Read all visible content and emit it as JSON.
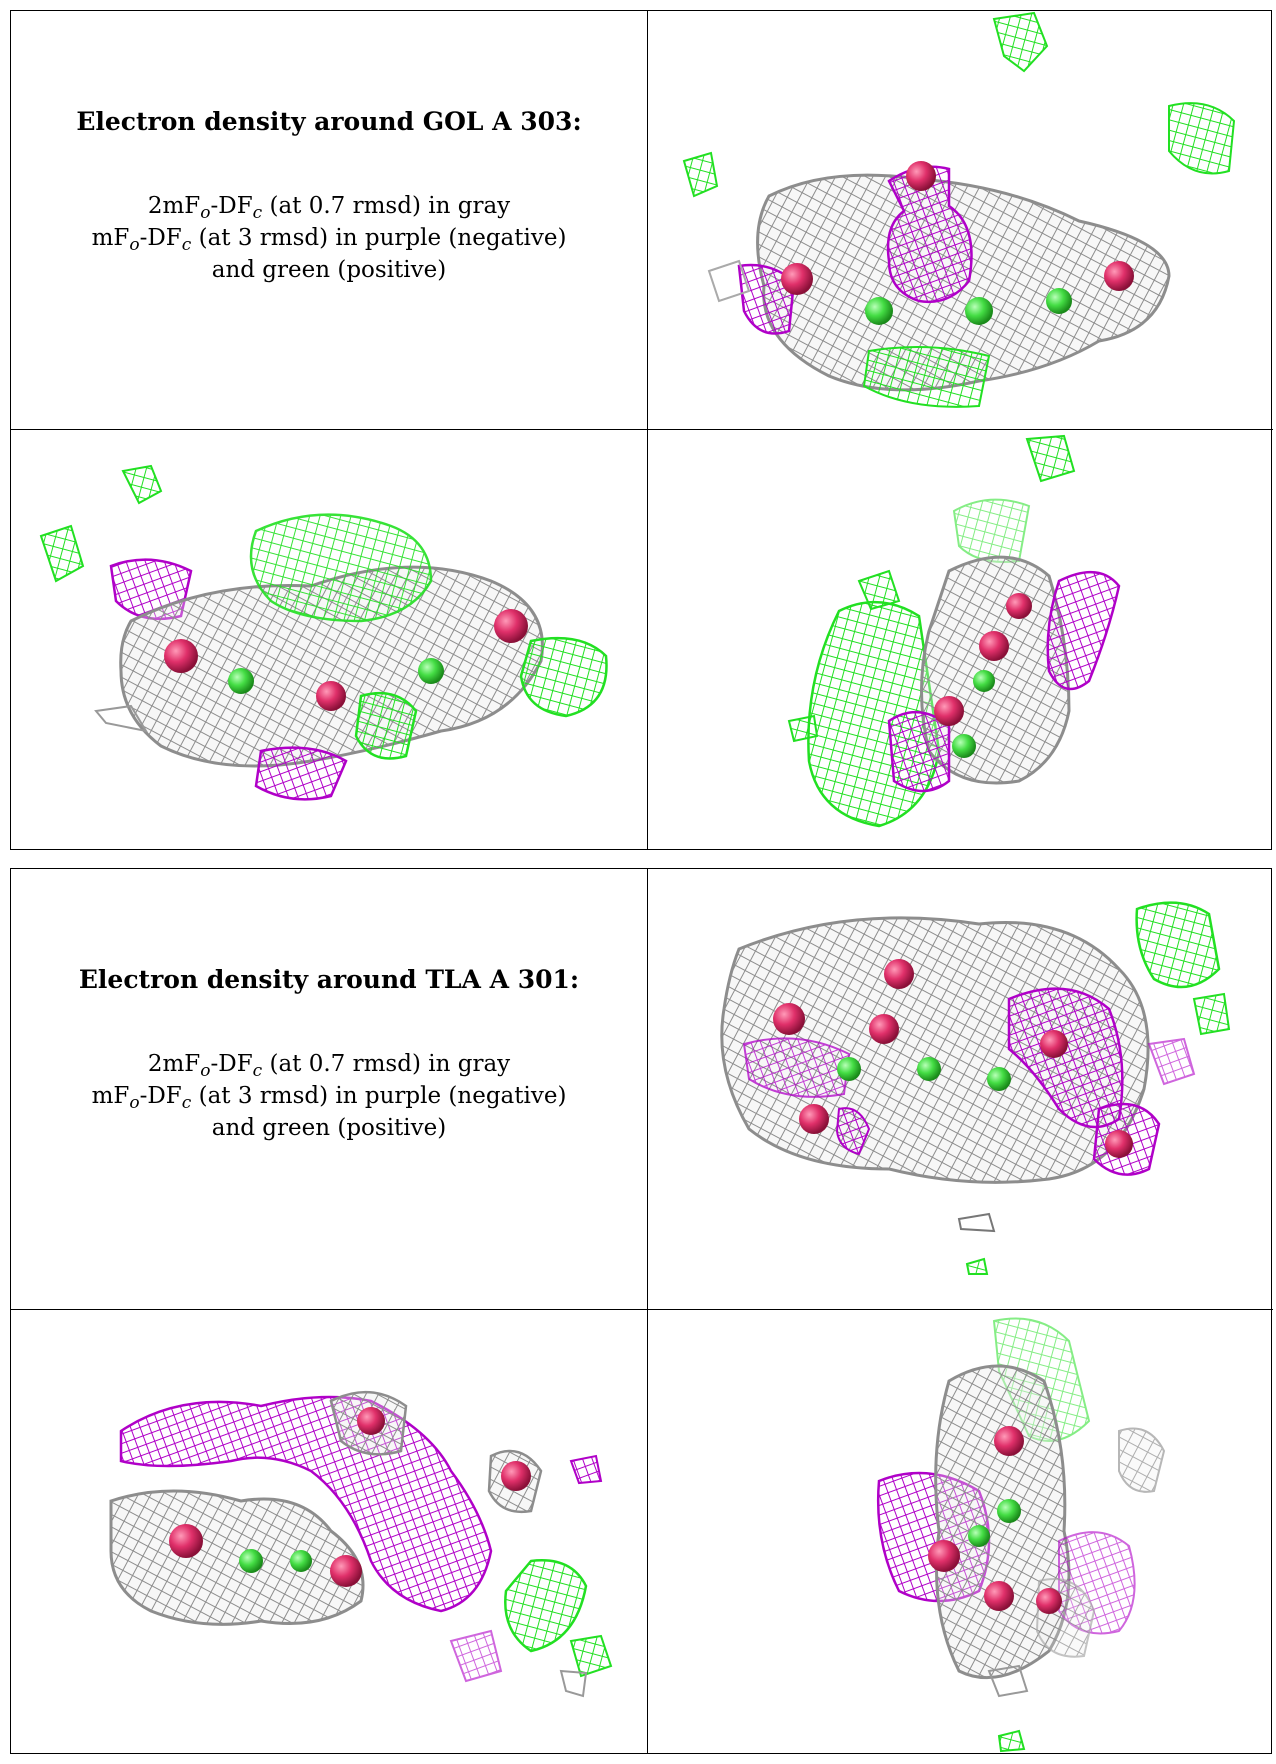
{
  "panels": [
    {
      "title": "Electron density around GOL A 303:",
      "line1": {
        "a": "2mF",
        "s1": "o",
        "b": "-DF",
        "s2": "c",
        "c": " (at 0.7 rmsd) in gray"
      },
      "line2": {
        "a": "mF",
        "s1": "o",
        "b": "-DF",
        "s2": "c",
        "c": " (at 3 rmsd) in purple (negative)"
      },
      "line3": "and green (positive)"
    },
    {
      "title": "Electron density around TLA A 301:",
      "line1": {
        "a": "2mF",
        "s1": "o",
        "b": "-DF",
        "s2": "c",
        "c": " (at 0.7 rmsd) in gray"
      },
      "line2": {
        "a": "mF",
        "s1": "o",
        "b": "-DF",
        "s2": "c",
        "c": " (at 3 rmsd) in purple (negative)"
      },
      "line3": "and green (positive)"
    }
  ],
  "colors": {
    "gray_mesh": "#9a9a9a",
    "negative_mesh": "#b000c8",
    "positive_mesh": "#22e022",
    "atom_oxygen": "#e0306a",
    "atom_carbon": "#44dd44"
  }
}
